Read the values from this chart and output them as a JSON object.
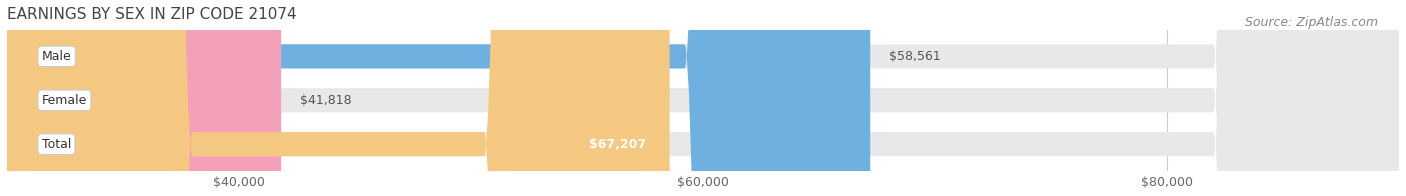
{
  "title": "EARNINGS BY SEX IN ZIP CODE 21074",
  "source": "Source: ZipAtlas.com",
  "categories": [
    "Male",
    "Female",
    "Total"
  ],
  "values": [
    67207,
    41818,
    58561
  ],
  "bar_colors": [
    "#6eb0e0",
    "#f4a0b8",
    "#f5c882"
  ],
  "bar_bg_color": "#e8e8e8",
  "x_min": 30000,
  "x_max": 90000,
  "x_ticks": [
    40000,
    60000,
    80000
  ],
  "x_tick_labels": [
    "$40,000",
    "$60,000",
    "$80,000"
  ],
  "value_labels": [
    "$67,207",
    "$41,818",
    "$58,561"
  ],
  "label_inside": [
    true,
    false,
    false
  ],
  "title_fontsize": 11,
  "tick_fontsize": 9,
  "source_fontsize": 9,
  "bar_height": 0.55,
  "background_color": "#ffffff",
  "label_color_inside": "#ffffff",
  "label_color_outside": "#555555"
}
